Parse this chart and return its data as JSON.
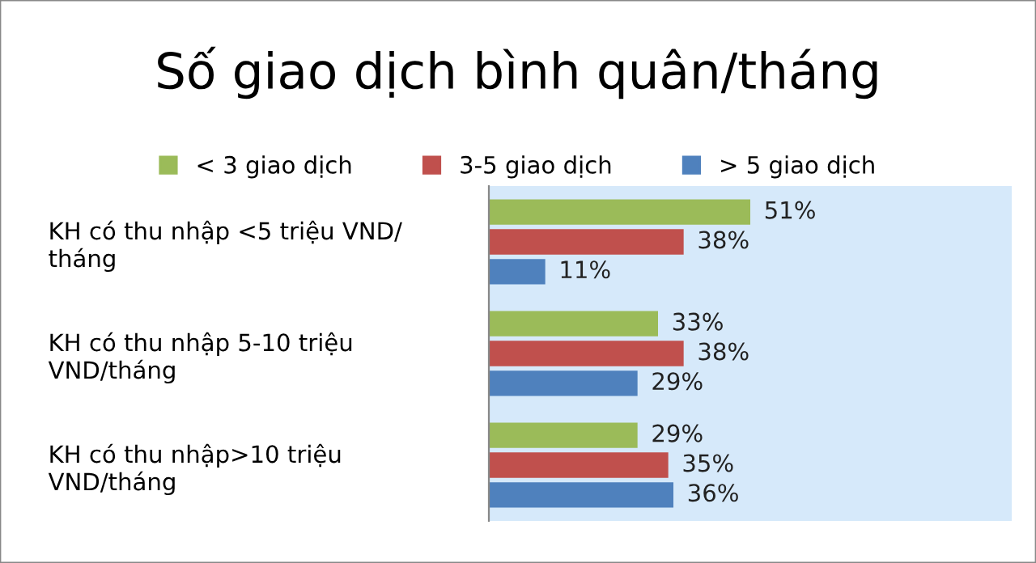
{
  "chart_data": {
    "type": "bar",
    "orientation": "horizontal",
    "title": "Số giao dịch bình quân/tháng",
    "categories": [
      "KH có thu nhập <5 triệu VND/\ntháng",
      "KH có thu nhập 5-10 triệu\nVND/tháng",
      "KH có thu nhập>10 triệu\nVND/tháng"
    ],
    "series": [
      {
        "name": "< 3 giao dịch",
        "color": "#9bbb59",
        "values": [
          51,
          33,
          29
        ],
        "value_labels": [
          "51%",
          "33%",
          "29%"
        ]
      },
      {
        "name": "3-5 giao dịch",
        "color": "#c0504d",
        "values": [
          38,
          38,
          35
        ],
        "value_labels": [
          "38%",
          "38%",
          "35%"
        ]
      },
      {
        "name": "> 5 giao dịch",
        "color": "#4f81bd",
        "values": [
          11,
          29,
          36
        ],
        "value_labels": [
          "11%",
          "29%",
          "36%"
        ]
      }
    ],
    "legend": "top",
    "grid": false,
    "tick_labels": "y"
  }
}
